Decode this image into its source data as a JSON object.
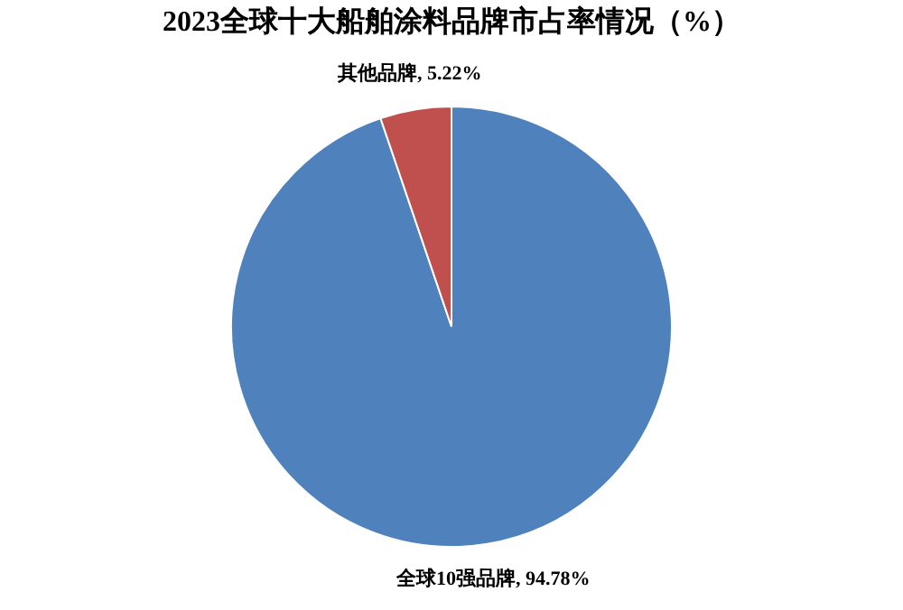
{
  "chart_data": {
    "type": "pie",
    "title": "2023全球十大船舶涂料品牌市占率情况（%）",
    "categories": [
      "全球10强品牌",
      "其他品牌"
    ],
    "values": [
      94.78,
      5.22
    ],
    "colors": [
      "#4f81bd",
      "#c0504d"
    ],
    "value_labels": [
      "94.78%",
      "5.22%"
    ],
    "legend": false
  }
}
